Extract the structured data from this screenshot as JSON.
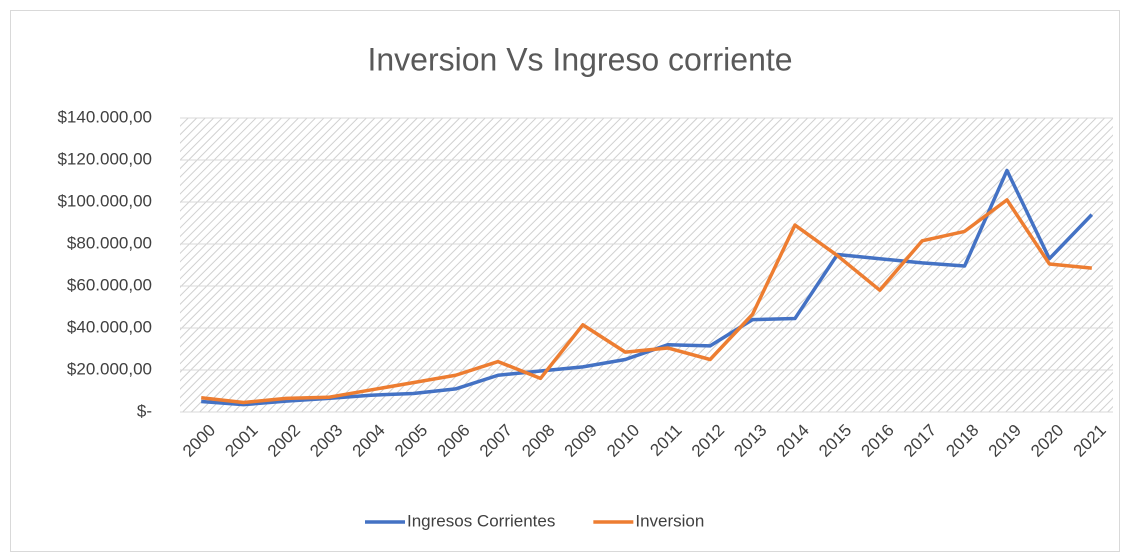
{
  "chart_data": {
    "type": "line",
    "title": "Inversion Vs Ingreso corriente",
    "categories": [
      "2000",
      "2001",
      "2002",
      "2003",
      "2004",
      "2005",
      "2006",
      "2007",
      "2008",
      "2009",
      "2010",
      "2011",
      "2012",
      "2013",
      "2014",
      "2015",
      "2016",
      "2017",
      "2018",
      "2019",
      "2020",
      "2021"
    ],
    "series": [
      {
        "name": "Ingresos Corrientes",
        "color": "#4472c4",
        "values": [
          5000,
          3500,
          5200,
          6500,
          8000,
          8800,
          11000,
          17500,
          19500,
          21500,
          25000,
          32000,
          31500,
          44000,
          44500,
          75000,
          73000,
          71000,
          69500,
          115000,
          73000,
          94000
        ]
      },
      {
        "name": "Inversion",
        "color": "#ed7d31",
        "values": [
          6800,
          4500,
          6500,
          7000,
          10500,
          14000,
          17500,
          24000,
          16000,
          41500,
          28500,
          30500,
          25000,
          46500,
          89000,
          74500,
          58000,
          81500,
          86000,
          101000,
          70500,
          68500
        ]
      }
    ],
    "ylim": [
      0,
      140000
    ],
    "yticks": [
      {
        "value": 0,
        "label": "$-"
      },
      {
        "value": 20000,
        "label": "$20.000,00"
      },
      {
        "value": 40000,
        "label": "$40.000,00"
      },
      {
        "value": 60000,
        "label": "$60.000,00"
      },
      {
        "value": 80000,
        "label": "$80.000,00"
      },
      {
        "value": 100000,
        "label": "$100.000,00"
      },
      {
        "value": 120000,
        "label": "$120.000,00"
      },
      {
        "value": 140000,
        "label": "$140.000,00"
      }
    ],
    "grid": true,
    "legend": "bottom"
  }
}
